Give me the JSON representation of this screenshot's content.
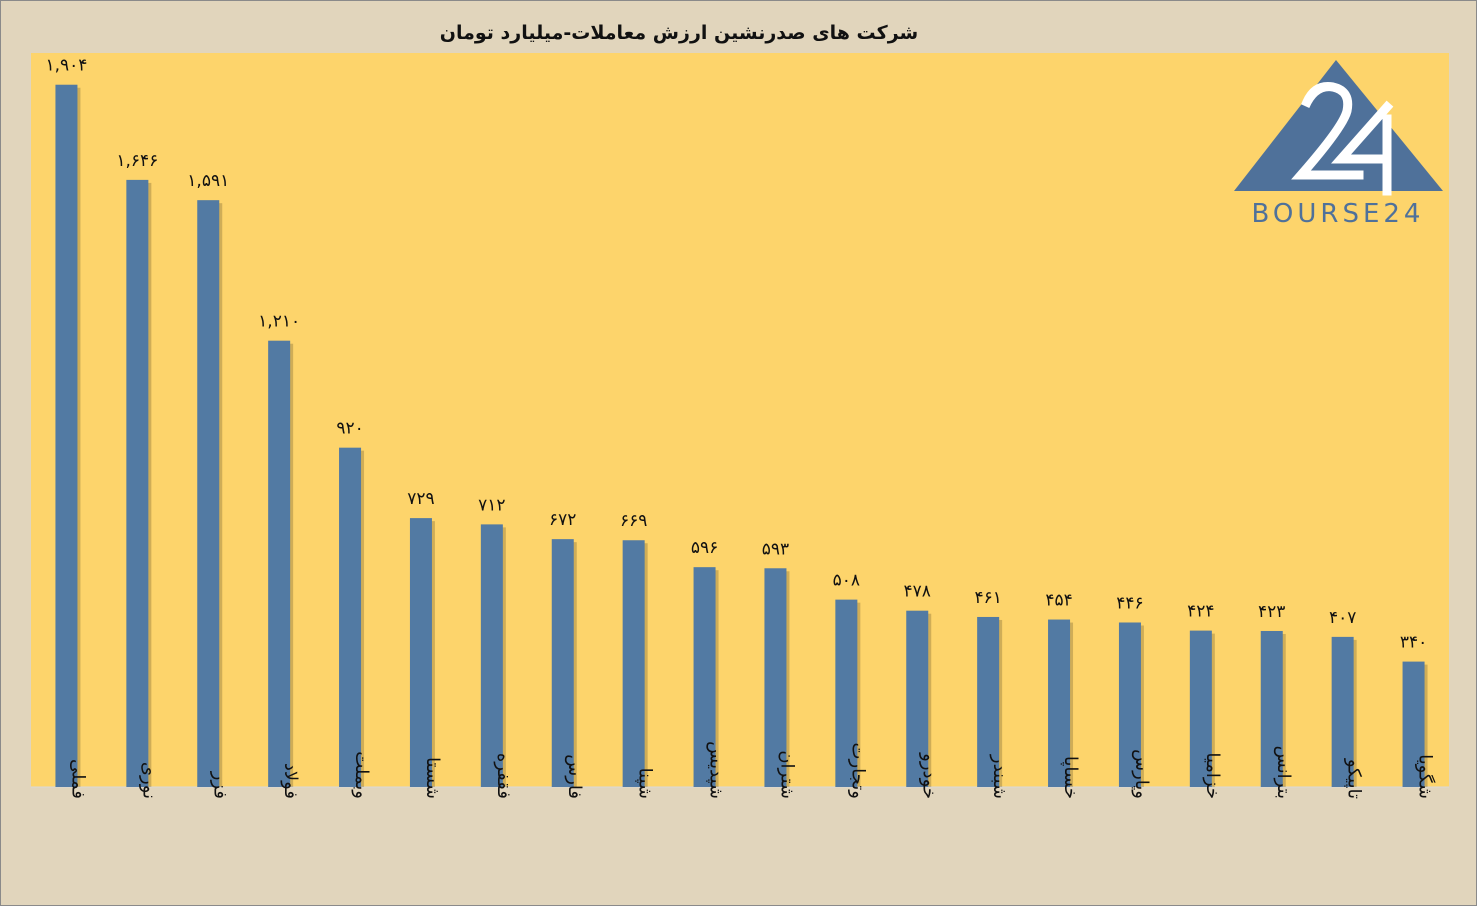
{
  "chart_data": {
    "type": "bar",
    "title": "شرکت های صدرنشین ارزش معاملات-میلیارد تومان",
    "categories": [
      "فملی",
      "نوری",
      "فزر",
      "فولاد",
      "وبملت",
      "شستا",
      "فقفره",
      "فارس",
      "شپنا",
      "شپدیس",
      "شتران",
      "وتجارت",
      "خودرو",
      "شبندر",
      "خساپا",
      "وپارس",
      "خزامیا",
      "بترانس",
      "تاپیکو",
      "شگویا"
    ],
    "values": [
      1904,
      1646,
      1591,
      1210,
      920,
      729,
      712,
      672,
      669,
      596,
      593,
      508,
      478,
      461,
      454,
      446,
      424,
      423,
      407,
      340
    ],
    "value_labels": [
      "۱,۹۰۴",
      "۱,۶۴۶",
      "۱,۵۹۱",
      "۱,۲۱۰",
      "۹۲۰",
      "۷۲۹",
      "۷۱۲",
      "۶۷۲",
      "۶۶۹",
      "۵۹۶",
      "۵۹۳",
      "۵۰۸",
      "۴۷۸",
      "۴۶۱",
      "۴۵۴",
      "۴۴۶",
      "۴۲۴",
      "۴۲۳",
      "۴۰۷",
      "۳۴۰"
    ],
    "ylim": [
      0,
      1990
    ],
    "grid": false,
    "legend": "none",
    "colors": {
      "bar": "#527aa3",
      "plot_background": "#fdd46b",
      "page_background": "#e1d5bc"
    }
  },
  "logo": {
    "mark_text": "24",
    "wordmark": "BOURSE24",
    "color": "#4f719a"
  }
}
